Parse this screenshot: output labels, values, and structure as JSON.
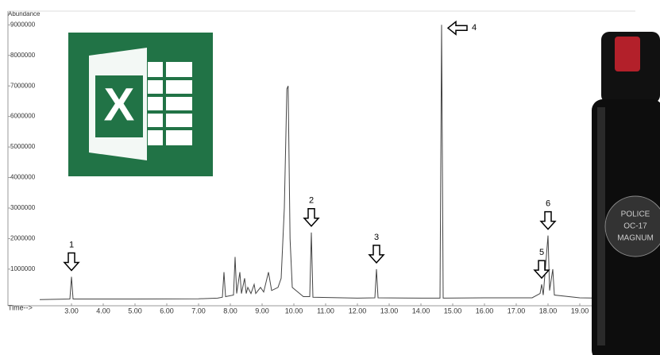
{
  "chart_data": {
    "type": "line",
    "y_label": "Abundance",
    "x_label": "Time-->",
    "color": "#444444",
    "x": [
      2.0,
      2.95,
      3.0,
      3.05,
      5.0,
      7.0,
      7.6,
      7.75,
      7.8,
      7.85,
      8.1,
      8.15,
      8.2,
      8.3,
      8.35,
      8.45,
      8.5,
      8.55,
      8.65,
      8.75,
      8.8,
      8.95,
      9.05,
      9.2,
      9.3,
      9.5,
      9.6,
      9.7,
      9.78,
      9.82,
      9.88,
      9.95,
      10.3,
      10.5,
      10.55,
      10.6,
      12.0,
      12.55,
      12.6,
      12.65,
      14.0,
      14.6,
      14.65,
      14.7,
      16.0,
      17.5,
      17.75,
      17.8,
      17.85,
      18.0,
      18.05,
      18.15,
      18.2,
      19.0,
      19.6
    ],
    "values": [
      0,
      20000,
      750000,
      20000,
      20000,
      30000,
      50000,
      80000,
      900000,
      100000,
      150000,
      1400000,
      200000,
      900000,
      200000,
      700000,
      200000,
      400000,
      200000,
      500000,
      200000,
      400000,
      250000,
      900000,
      300000,
      400000,
      700000,
      3000000,
      6900000,
      7000000,
      2000000,
      400000,
      100000,
      100000,
      2200000,
      80000,
      50000,
      60000,
      1000000,
      60000,
      50000,
      50000,
      9000000,
      50000,
      60000,
      60000,
      200000,
      500000,
      150000,
      2100000,
      300000,
      1000000,
      150000,
      60000,
      50000
    ],
    "xlim": [
      1.0,
      20.75
    ],
    "ylim": [
      -200000,
      9450000
    ],
    "xticks": [
      {
        "value": 3,
        "label": "3.00"
      },
      {
        "value": 4,
        "label": "4.00"
      },
      {
        "value": 5,
        "label": "5.00"
      },
      {
        "value": 6,
        "label": "6.00"
      },
      {
        "value": 7,
        "label": "7.00"
      },
      {
        "value": 8,
        "label": "8.00"
      },
      {
        "value": 9,
        "label": "9.00"
      },
      {
        "value": 10,
        "label": "10.00"
      },
      {
        "value": 11,
        "label": "11.00"
      },
      {
        "value": 12,
        "label": "12.00"
      },
      {
        "value": 13,
        "label": "13.00"
      },
      {
        "value": 14,
        "label": "14.00"
      },
      {
        "value": 15,
        "label": "15.00"
      },
      {
        "value": 16,
        "label": "16.00"
      },
      {
        "value": 17,
        "label": "17.00"
      },
      {
        "value": 18,
        "label": "18.00"
      },
      {
        "value": 19,
        "label": "19.00"
      }
    ],
    "yticks": [
      1000000,
      2000000,
      3000000,
      4000000,
      5000000,
      6000000,
      7000000,
      8000000,
      9000000
    ],
    "annotations": [
      {
        "text": "1",
        "x": 3.0
      },
      {
        "text": "2",
        "x": 10.55
      },
      {
        "text": "3",
        "x": 12.6
      },
      {
        "text": "4",
        "x": 14.65
      },
      {
        "text": "5",
        "x": 17.8
      },
      {
        "text": "6",
        "x": 18.0
      }
    ]
  },
  "logo": {
    "letter": "X"
  },
  "spray": {
    "label_lines": [
      "POLICE",
      "OC-17",
      "MAGNUM"
    ]
  }
}
